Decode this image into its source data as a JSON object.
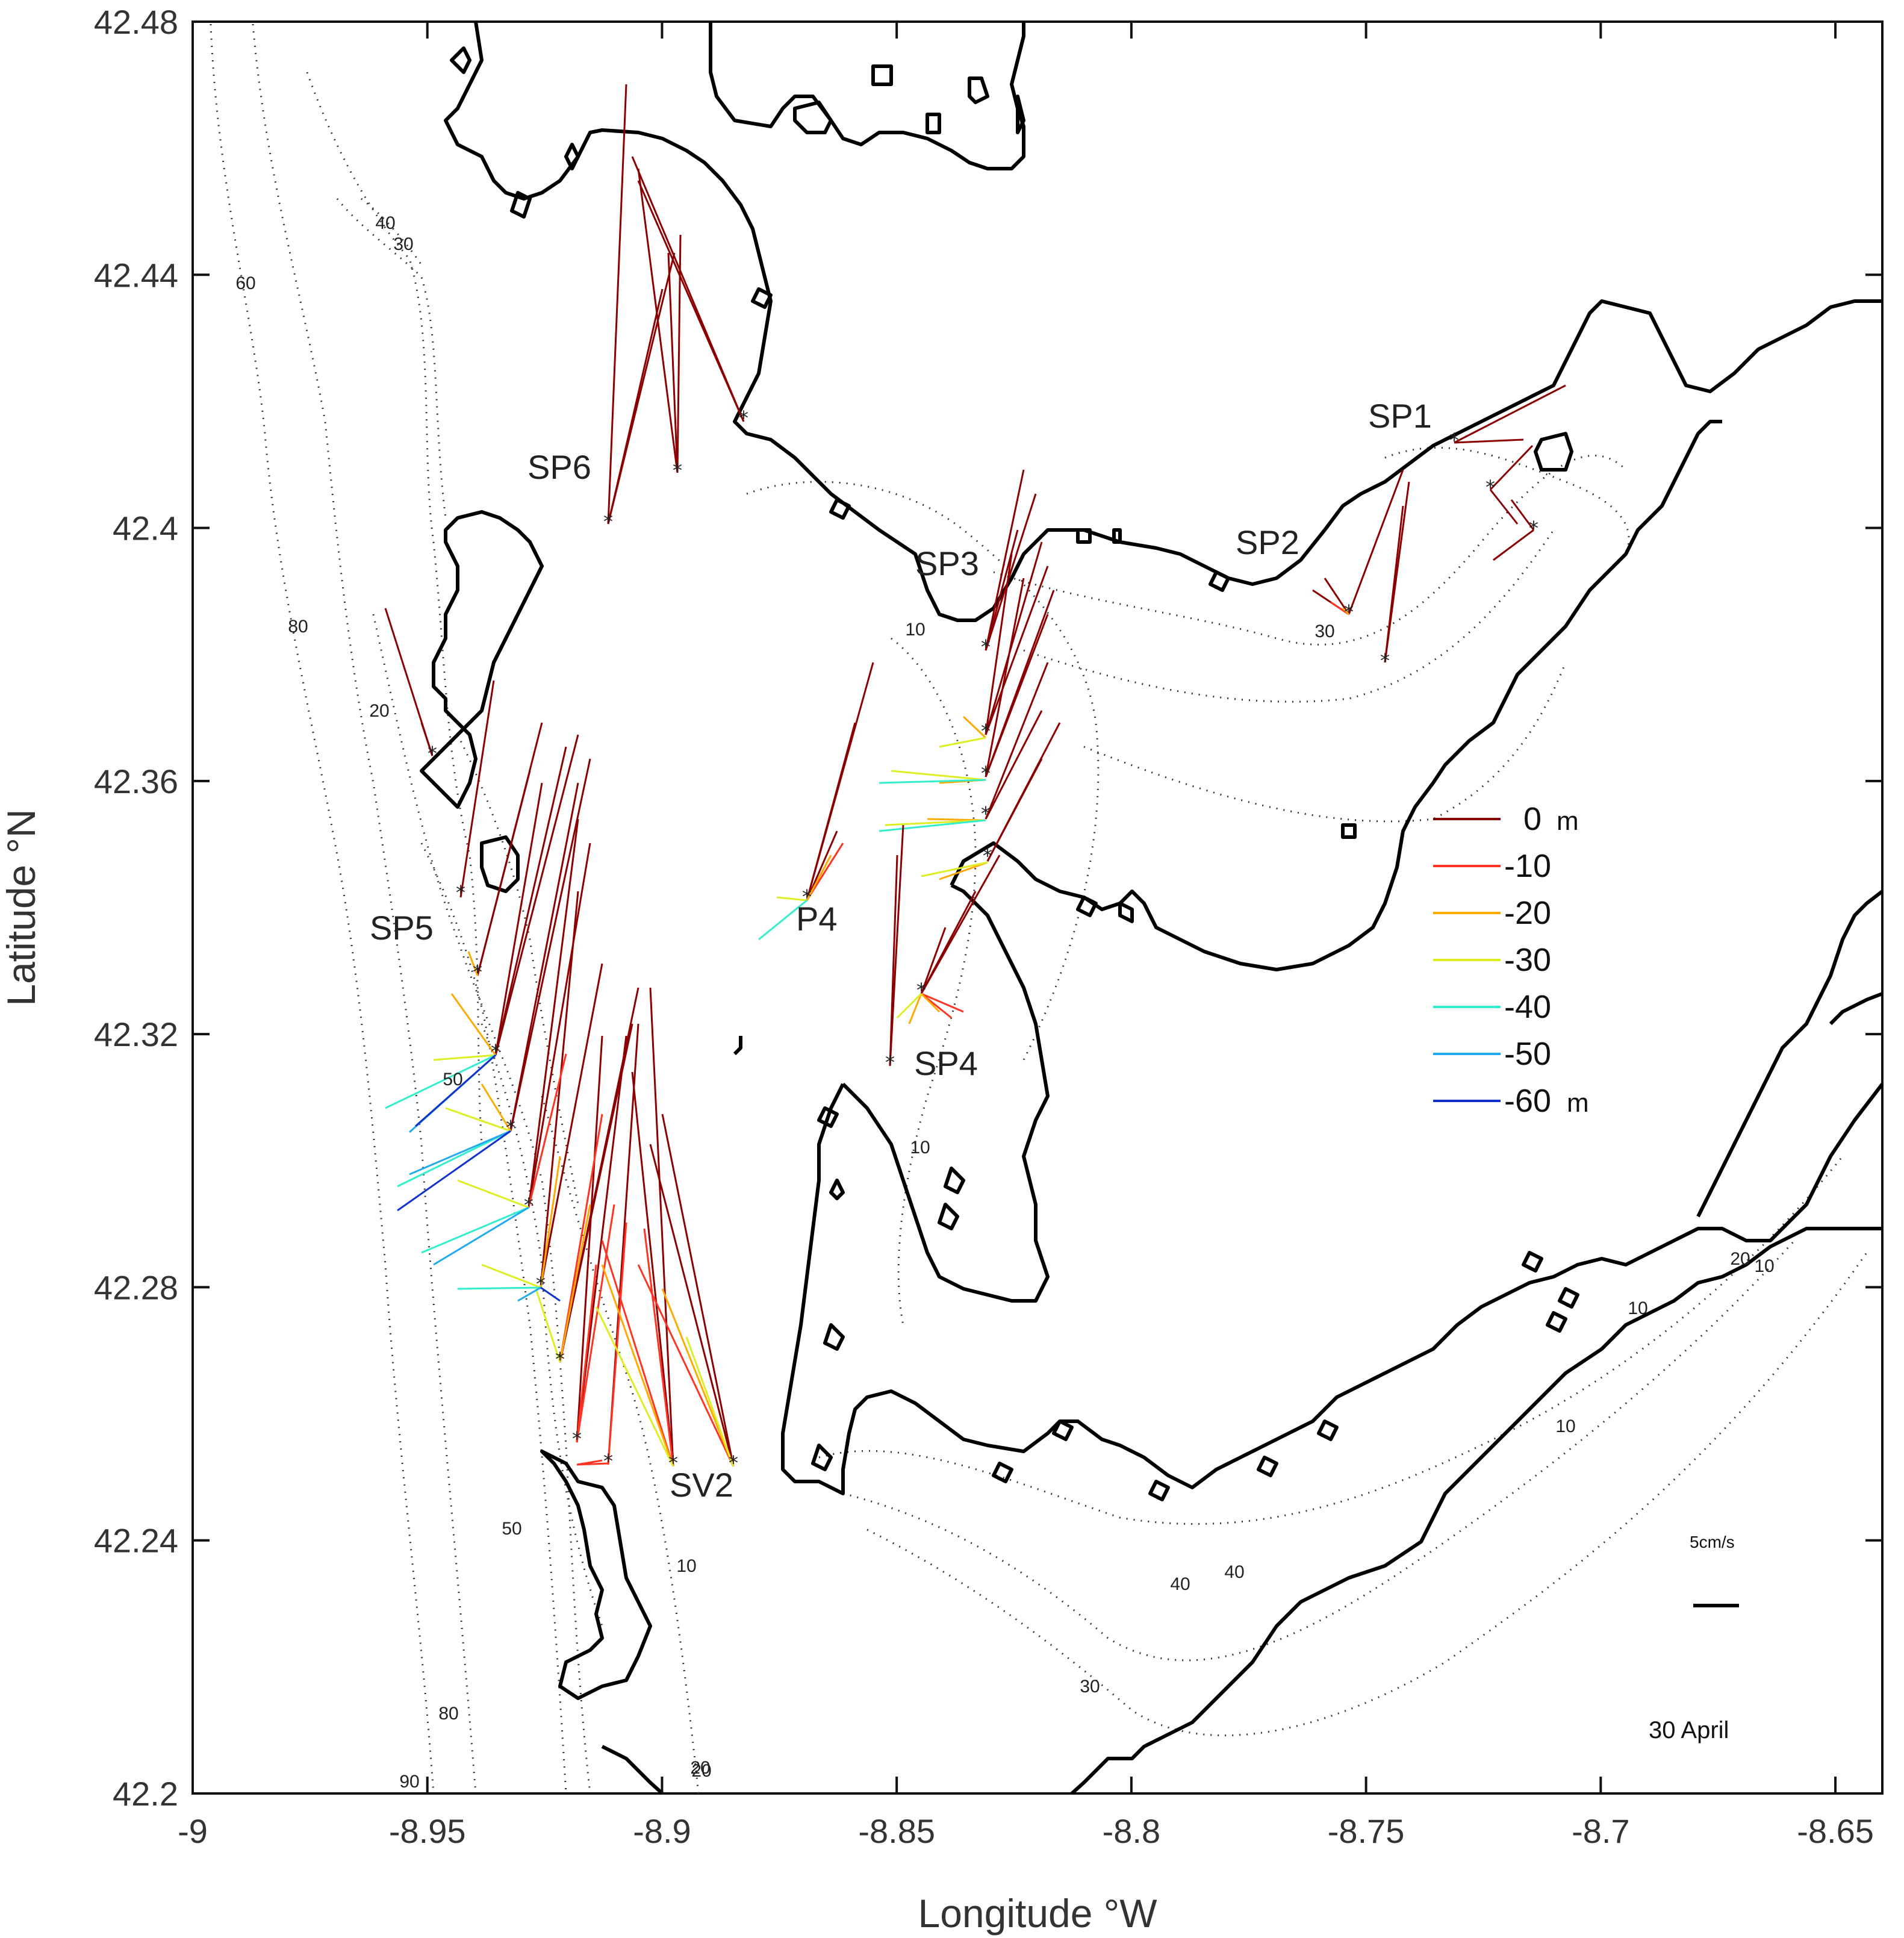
{
  "axes": {
    "xlabel": "Longitude °W",
    "ylabel": "Latitude °N",
    "xticks": [
      "-9",
      "-8.95",
      "-8.9",
      "-8.85",
      "-8.8",
      "-8.75",
      "-8.7",
      "-8.65"
    ],
    "yticks": [
      "42.48",
      "42.44",
      "42.4",
      "42.36",
      "42.32",
      "42.28",
      "42.24",
      "42.2"
    ],
    "xlim": [
      -9.0,
      -8.64
    ],
    "ylim": [
      42.2,
      42.48
    ]
  },
  "stations": [
    "SP1",
    "SP2",
    "SP3",
    "SP4",
    "SP5",
    "SP6",
    "P4",
    "SV2"
  ],
  "legend": {
    "entries": [
      {
        "label": "0",
        "unit": "m",
        "depth": 0,
        "color": "#8b0000"
      },
      {
        "label": "-10",
        "unit": "",
        "depth": -10,
        "color": "#ff3322"
      },
      {
        "label": "-20",
        "unit": "",
        "depth": -20,
        "color": "#ffaa00"
      },
      {
        "label": "-30",
        "unit": "",
        "depth": -30,
        "color": "#ddee22"
      },
      {
        "label": "-40",
        "unit": "",
        "depth": -40,
        "color": "#33eecc"
      },
      {
        "label": "-50",
        "unit": "",
        "depth": -50,
        "color": "#22aaee"
      },
      {
        "label": "-60",
        "unit": "m",
        "depth": -60,
        "color": "#1133cc"
      }
    ]
  },
  "scale": {
    "label": "5cm/s",
    "value_cm_s": 5
  },
  "date": "30 April",
  "contour_labels": [
    "40",
    "30",
    "60",
    "80",
    "20",
    "10",
    "10",
    "30",
    "50",
    "50",
    "10",
    "20",
    "40",
    "40",
    "30",
    "80",
    "90",
    "20",
    "10",
    "10",
    "20",
    "10"
  ],
  "chart_data": {
    "type": "map-vector",
    "title": "",
    "xlabel": "Longitude °W",
    "ylabel": "Latitude °N",
    "xlim": [
      -9.0,
      -8.64
    ],
    "ylim": [
      42.2,
      42.48
    ],
    "date": "30 April",
    "stations": [
      {
        "name": "SP1",
        "lon": -8.732,
        "lat": 42.414
      },
      {
        "name": "SP2",
        "lon": -8.754,
        "lat": 42.386
      },
      {
        "name": "SP3",
        "lon": -8.831,
        "lat": 42.381
      },
      {
        "name": "SP4",
        "lon": -8.845,
        "lat": 42.327
      },
      {
        "name": "SP5",
        "lon": -8.939,
        "lat": 42.33
      },
      {
        "name": "SP6",
        "lon": -8.91,
        "lat": 42.401
      },
      {
        "name": "P4",
        "lon": -8.869,
        "lat": 42.342
      },
      {
        "name": "SV2",
        "lon": -8.898,
        "lat": 42.253
      }
    ]
  }
}
